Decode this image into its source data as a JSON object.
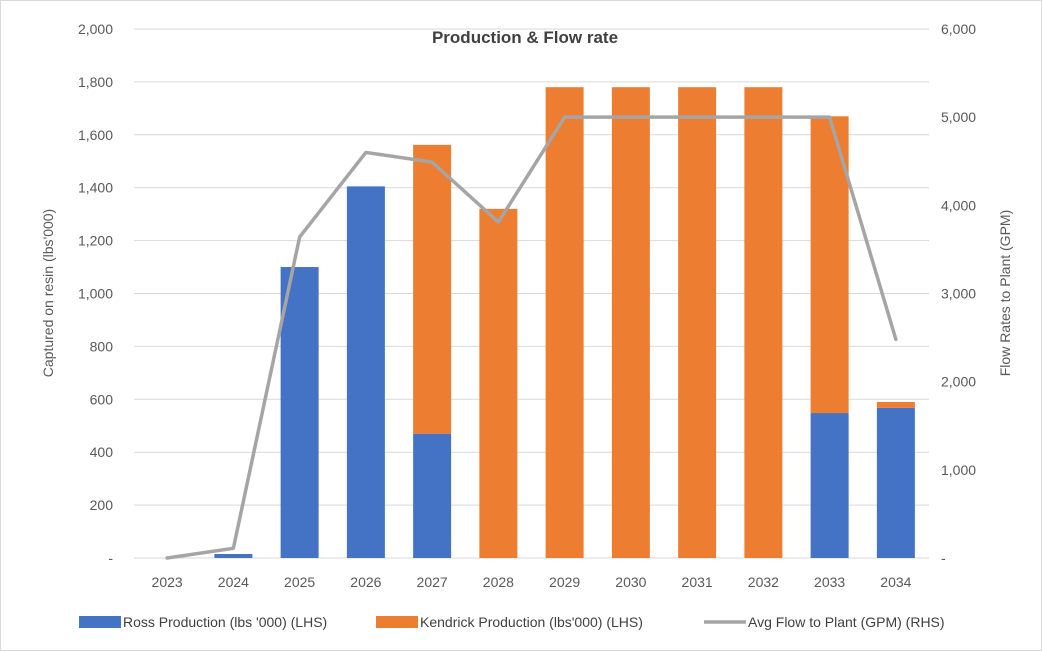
{
  "chart_data": {
    "type": "bar",
    "stacked": true,
    "title": "Production & Flow rate",
    "categories": [
      "2023",
      "2024",
      "2025",
      "2026",
      "2027",
      "2028",
      "2029",
      "2030",
      "2031",
      "2032",
      "2033",
      "2034"
    ],
    "series": [
      {
        "name": "Ross Production (lbs '000) (LHS)",
        "axis": "left",
        "kind": "bar",
        "color": "#4472c4",
        "values": [
          0,
          15,
          1100,
          1405,
          470,
          0,
          0,
          0,
          0,
          0,
          548,
          568
        ]
      },
      {
        "name": "Kendrick Production (lbs'000) (LHS)",
        "axis": "left",
        "kind": "bar",
        "color": "#ed7d31",
        "values": [
          0,
          0,
          0,
          0,
          1092,
          1320,
          1780,
          1780,
          1780,
          1780,
          1122,
          22
        ]
      },
      {
        "name": "Avg Flow to Plant (GPM) (RHS)",
        "axis": "right",
        "kind": "line",
        "color": "#a5a5a5",
        "values": [
          0,
          110,
          3640,
          4600,
          4490,
          3810,
          5000,
          5000,
          5000,
          5000,
          5000,
          2480
        ]
      }
    ],
    "ylabel": "Captured on resin (lbs'000)",
    "y2label": "Flow Rates to Plant (GPM)",
    "xlabel": "",
    "ylim": [
      0,
      2000
    ],
    "y2lim": [
      0,
      6000
    ],
    "yticks": [
      "-",
      "200",
      "400",
      "600",
      "800",
      "1,000",
      "1,200",
      "1,400",
      "1,600",
      "1,800",
      "2,000"
    ],
    "y2ticks": [
      "-",
      "1,000",
      "2,000",
      "3,000",
      "4,000",
      "5,000",
      "6,000"
    ],
    "grid": true,
    "legend_position": "bottom"
  }
}
